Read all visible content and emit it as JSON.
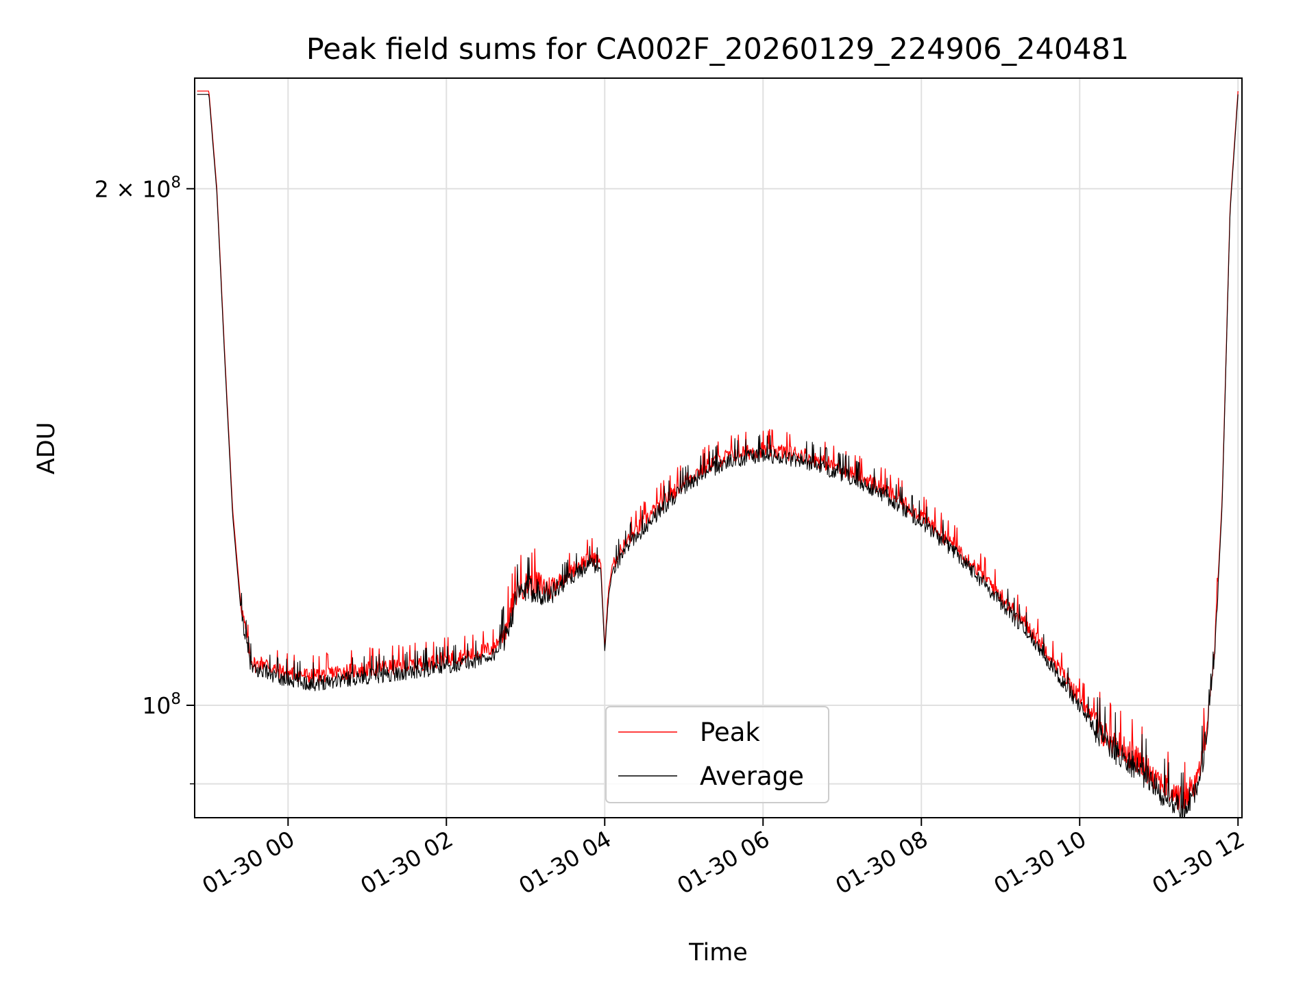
{
  "chart_data": {
    "type": "line",
    "title": "Peak field sums for CA002F_20260129_224906_240481",
    "xlabel": "Time",
    "ylabel": "ADU",
    "y_scale": "log",
    "x_unit": "hours since 01-30 00:00",
    "xlim": [
      -1.18,
      12.05
    ],
    "ylim": [
      86000000,
      232000000
    ],
    "grid": true,
    "x_ticks": [
      {
        "value": 0,
        "label": "01-30 00"
      },
      {
        "value": 2,
        "label": "01-30 02"
      },
      {
        "value": 4,
        "label": "01-30 04"
      },
      {
        "value": 6,
        "label": "01-30 06"
      },
      {
        "value": 8,
        "label": "01-30 08"
      },
      {
        "value": 10,
        "label": "01-30 10"
      },
      {
        "value": 12,
        "label": "01-30 12"
      }
    ],
    "y_major_ticks": [
      {
        "value": 100000000,
        "base": "10",
        "exp": "8"
      },
      {
        "value": 200000000,
        "mantissa": "2",
        "base": "10",
        "exp": "8"
      }
    ],
    "y_minor_ticks": [
      90000000
    ],
    "legend": {
      "position": "bottom-center",
      "entries": [
        {
          "name": "Peak",
          "color": "#ff0000"
        },
        {
          "name": "Average",
          "color": "#000000"
        }
      ]
    },
    "series": [
      {
        "name": "Peak",
        "color": "#ff0000",
        "x": [
          -1.15,
          -1.0,
          -0.9,
          -0.8,
          -0.7,
          -0.6,
          -0.5,
          -0.45,
          -0.4,
          -0.3,
          -0.2,
          0.0,
          0.3,
          0.6,
          1.0,
          1.5,
          2.0,
          2.3,
          2.6,
          2.75,
          2.9,
          3.1,
          3.3,
          3.5,
          3.7,
          3.85,
          3.95,
          4.0,
          4.05,
          4.1,
          4.3,
          4.7,
          5.0,
          5.3,
          5.6,
          6.0,
          6.5,
          7.0,
          7.5,
          8.0,
          8.5,
          9.0,
          9.5,
          10.0,
          10.3,
          10.6,
          10.9,
          11.1,
          11.3,
          11.5,
          11.6,
          11.7,
          11.8,
          11.9,
          12.0
        ],
        "values": [
          228000000,
          228000000,
          200000000,
          160000000,
          130000000,
          115000000,
          108000000,
          106000000,
          105500000,
          106000000,
          105000000,
          104500000,
          104000000,
          104500000,
          105000000,
          105500000,
          106500000,
          107000000,
          108000000,
          111000000,
          117000000,
          118000000,
          117000000,
          119000000,
          121000000,
          122000000,
          121000000,
          108000000,
          117000000,
          121000000,
          125000000,
          131000000,
          135000000,
          138000000,
          140000000,
          141000000,
          140000000,
          137500000,
          134000000,
          129000000,
          123000000,
          116000000,
          109000000,
          101000000,
          96500000,
          94000000,
          91500000,
          89500000,
          88000000,
          91000000,
          97000000,
          107000000,
          132000000,
          195000000,
          228000000
        ]
      },
      {
        "name": "Average",
        "color": "#000000",
        "x": [
          -1.15,
          -1.0,
          -0.9,
          -0.8,
          -0.7,
          -0.6,
          -0.5,
          -0.45,
          -0.4,
          -0.3,
          -0.2,
          0.0,
          0.3,
          0.6,
          1.0,
          1.5,
          2.0,
          2.3,
          2.6,
          2.75,
          2.9,
          3.1,
          3.3,
          3.5,
          3.7,
          3.85,
          3.95,
          4.0,
          4.05,
          4.1,
          4.3,
          4.7,
          5.0,
          5.3,
          5.6,
          6.0,
          6.5,
          7.0,
          7.5,
          8.0,
          8.5,
          9.0,
          9.5,
          10.0,
          10.3,
          10.6,
          10.9,
          11.1,
          11.3,
          11.5,
          11.6,
          11.7,
          11.8,
          11.9,
          12.0
        ],
        "values": [
          227000000,
          227000000,
          199000000,
          159000000,
          129000000,
          114000000,
          107000000,
          105000000,
          104500000,
          105000000,
          104000000,
          103500000,
          103000000,
          103500000,
          104000000,
          104500000,
          105500000,
          106000000,
          107000000,
          110000000,
          116000000,
          117000000,
          116000000,
          118000000,
          120000000,
          121000000,
          120000000,
          107500000,
          116000000,
          120000000,
          124000000,
          130000000,
          134000000,
          137000000,
          139000000,
          140000000,
          139000000,
          136500000,
          133000000,
          128000000,
          122000000,
          115000000,
          108000000,
          100000000,
          95500000,
          93000000,
          90500000,
          88500000,
          87000000,
          90000000,
          96000000,
          106000000,
          131000000,
          194000000,
          227000000
        ]
      }
    ]
  }
}
